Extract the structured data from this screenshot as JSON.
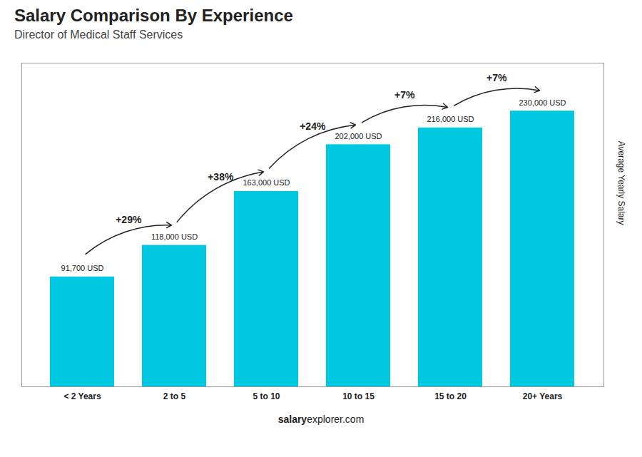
{
  "chart_data": {
    "type": "bar",
    "title": "Salary Comparison By Experience",
    "subtitle": "Director of Medical Staff Services",
    "categories": [
      "< 2 Years",
      "2 to 5",
      "5 to 10",
      "10 to 15",
      "15 to 20",
      "20+ Years"
    ],
    "values": [
      91700,
      118000,
      163000,
      202000,
      216000,
      230000
    ],
    "value_labels": [
      "91,700 USD",
      "118,000 USD",
      "163,000 USD",
      "202,000 USD",
      "216,000 USD",
      "230,000 USD"
    ],
    "data_labels": true,
    "color": "#00C8E0",
    "ylim": [
      0,
      270000
    ],
    "ylabel": "Average Yearly Salary",
    "tick_labels": "x",
    "annotations": [
      "+29%",
      "+38%",
      "+24%",
      "+7%",
      "+7%"
    ],
    "caption": [
      "salary",
      "explorer.com"
    ]
  }
}
